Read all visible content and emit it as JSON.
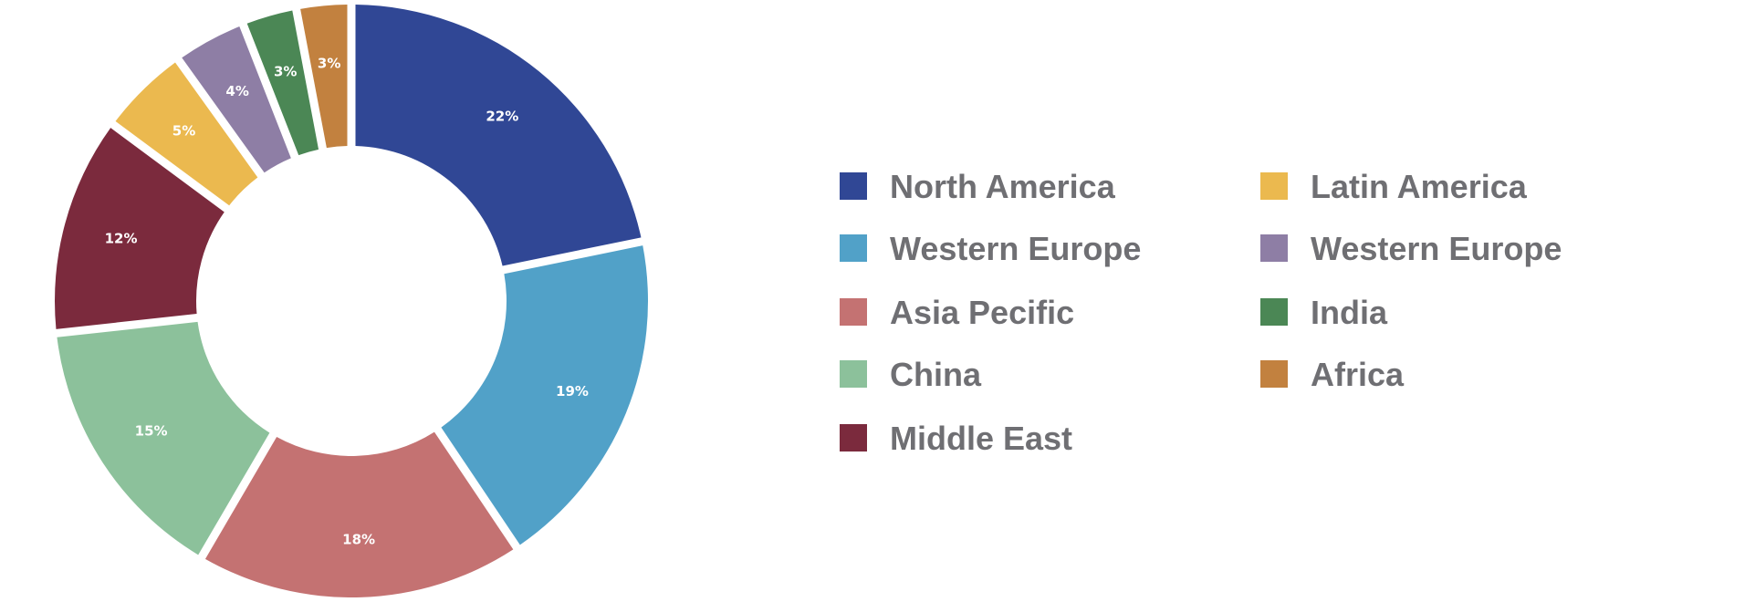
{
  "chart_data": {
    "type": "pie",
    "variant": "donut",
    "categories": [
      "North America",
      "Western Europe",
      "Asia Pecific",
      "China",
      "Middle East",
      "Latin America",
      "Western Europe",
      "India",
      "Africa"
    ],
    "values": [
      22,
      19,
      18,
      15,
      12,
      5,
      4,
      3,
      3
    ],
    "labels": [
      "22%",
      "19%",
      "18%",
      "15%",
      "12%",
      "5%",
      "4%",
      "3%",
      "3%"
    ],
    "colors": [
      "#304795",
      "#51a1c8",
      "#c47272",
      "#8cc19b",
      "#7b2a3d",
      "#ebb94f",
      "#8e7ea5",
      "#4b8755",
      "#c2813f"
    ],
    "legend": {
      "placement": "right",
      "columns": 2,
      "entries": [
        {
          "label": "North America",
          "color": "#304795"
        },
        {
          "label": "Western Europe",
          "color": "#51a1c8"
        },
        {
          "label": "Asia Pecific",
          "color": "#c47272"
        },
        {
          "label": "China",
          "color": "#8cc19b"
        },
        {
          "label": "Middle East",
          "color": "#7b2a3d"
        },
        {
          "label": "Latin America",
          "color": "#ebb94f"
        },
        {
          "label": "Western Europe",
          "color": "#8e7ea5"
        },
        {
          "label": "India",
          "color": "#4b8755"
        },
        {
          "label": "Africa",
          "color": "#c2813f"
        }
      ]
    }
  }
}
